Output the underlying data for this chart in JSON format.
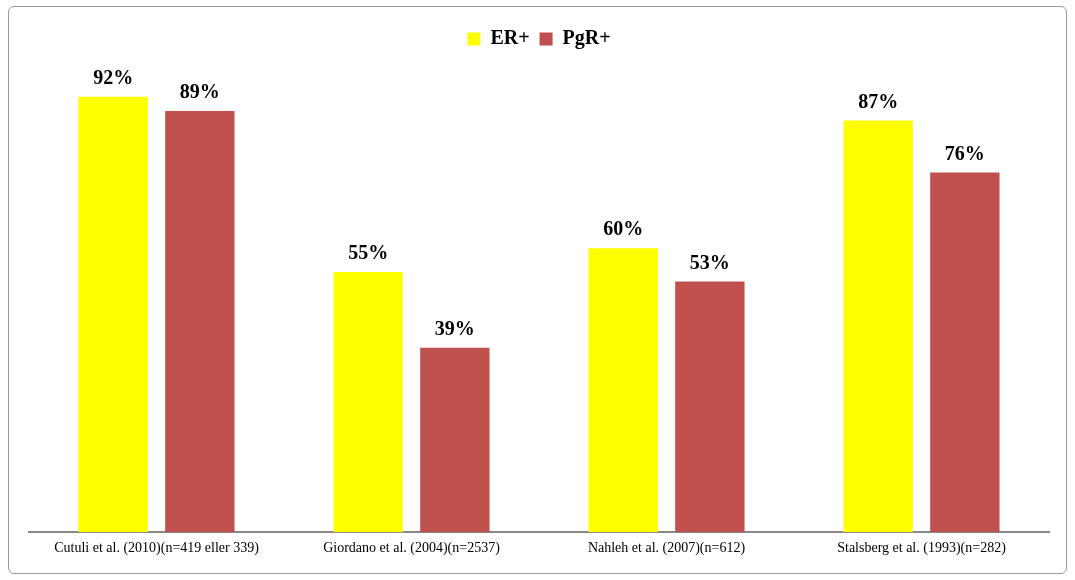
{
  "chart_data": {
    "type": "bar",
    "categories": [
      "Cutuli et al. (2010)(n=419 eller 339)",
      "Giordano et al. (2004)(n=2537)",
      "Nahleh et al. (2007)(n=612)",
      "Stalsberg et al. (1993)(n=282)"
    ],
    "series": [
      {
        "name": "ER+",
        "color": "#ffff00",
        "values": [
          92,
          55,
          60,
          87
        ],
        "value_labels": [
          "92%",
          "55%",
          "60%",
          "87%"
        ]
      },
      {
        "name": "PgR+",
        "color": "#c0504d",
        "values": [
          89,
          39,
          53,
          76
        ],
        "value_labels": [
          "89%",
          "39%",
          "53%",
          "76%"
        ]
      }
    ],
    "tick_labels": "x",
    "grid": false,
    "legend": "top"
  }
}
